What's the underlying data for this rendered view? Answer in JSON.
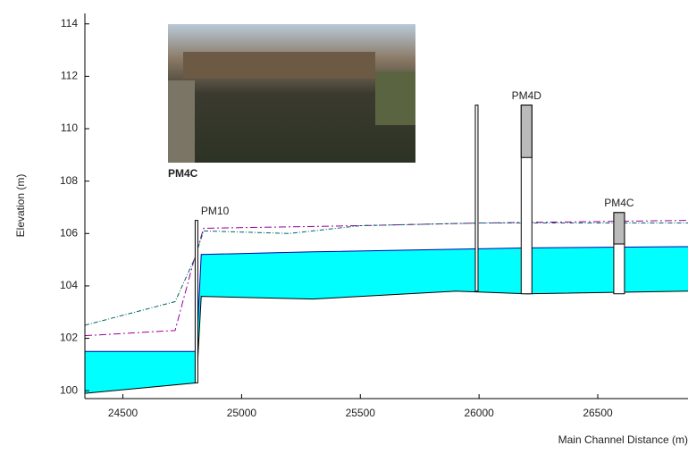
{
  "chart_data": {
    "type": "profile",
    "ylabel": "Elevation (m)",
    "xlabel": "Main Channel Distance (m)",
    "annotation": "PM4C",
    "xlim": [
      24340,
      26880
    ],
    "ylim": [
      99.7,
      114.4
    ],
    "xticks": [
      24500,
      25000,
      25500,
      26000,
      26500
    ],
    "yticks": [
      100,
      102,
      104,
      106,
      108,
      110,
      112,
      114
    ],
    "water": {
      "color": "#00ffff",
      "x": [
        24340,
        24810,
        24830,
        25300,
        25900,
        26200,
        26880
      ],
      "surface": [
        101.5,
        101.5,
        105.2,
        105.3,
        105.4,
        105.45,
        105.5
      ],
      "bed": [
        99.9,
        100.3,
        103.6,
        103.5,
        103.8,
        103.7,
        103.8
      ]
    },
    "series": [
      {
        "color": "#990099",
        "dash": "8 3 2 3",
        "x": [
          24340,
          24720,
          24800,
          24840,
          25500,
          26000,
          26880
        ],
        "values": [
          102.1,
          102.3,
          105.0,
          106.2,
          106.3,
          106.4,
          106.5
        ]
      },
      {
        "color": "#006666",
        "dash": "5 2 1 2",
        "x": [
          24340,
          24720,
          24800,
          24840,
          25200,
          25500,
          26000,
          26880
        ],
        "values": [
          102.5,
          103.4,
          105.0,
          106.1,
          106.0,
          106.3,
          106.4,
          106.4
        ]
      }
    ],
    "structures": [
      {
        "name": "PM10",
        "x": 24810,
        "bottom": 100.3,
        "top": 106.5
      },
      {
        "x": 25990,
        "bottom": 103.8,
        "top": 110.9
      },
      {
        "name": "PM4D",
        "x": 26200,
        "bottom": 103.7,
        "top": 110.9,
        "deck": 108.9
      },
      {
        "name": "PM4C",
        "x": 26590,
        "bottom": 103.7,
        "top": 106.8,
        "deck": 105.6
      }
    ]
  }
}
